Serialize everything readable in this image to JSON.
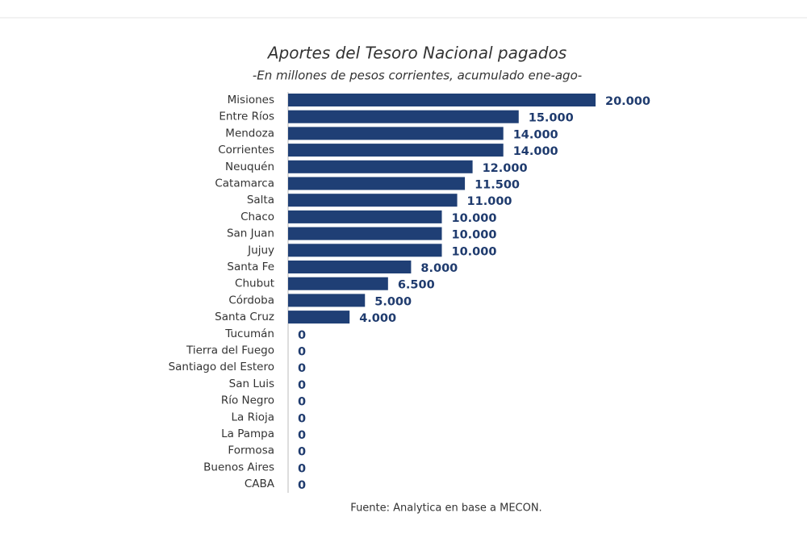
{
  "chart_data": {
    "type": "bar",
    "orientation": "horizontal",
    "title": "Aportes del Tesoro Nacional pagados",
    "subtitle": "-En millones de pesos corrientes, acumulado ene-ago-",
    "source": "Fuente: Analytica en base a MECON.",
    "color": "#1f3f75",
    "categories": [
      "Misiones",
      "Entre Ríos",
      "Mendoza",
      "Corrientes",
      "Neuquén",
      "Catamarca",
      "Salta",
      "Chaco",
      "San Juan",
      "Jujuy",
      "Santa Fe",
      "Chubut",
      "Córdoba",
      "Santa Cruz",
      "Tucumán",
      "Tierra del Fuego",
      "Santiago del Estero",
      "San Luis",
      "Río Negro",
      "La Rioja",
      "La Pampa",
      "Formosa",
      "Buenos Aires",
      "CABA"
    ],
    "values": [
      20000,
      15000,
      14000,
      14000,
      12000,
      11500,
      11000,
      10000,
      10000,
      10000,
      8000,
      6500,
      5000,
      4000,
      0,
      0,
      0,
      0,
      0,
      0,
      0,
      0,
      0,
      0
    ],
    "value_labels": [
      "20.000",
      "15.000",
      "14.000",
      "14.000",
      "12.000",
      "11.500",
      "11.000",
      "10.000",
      "10.000",
      "10.000",
      "8.000",
      "6.500",
      "5.000",
      "4.000",
      "0",
      "0",
      "0",
      "0",
      "0",
      "0",
      "0",
      "0",
      "0",
      "0"
    ]
  }
}
